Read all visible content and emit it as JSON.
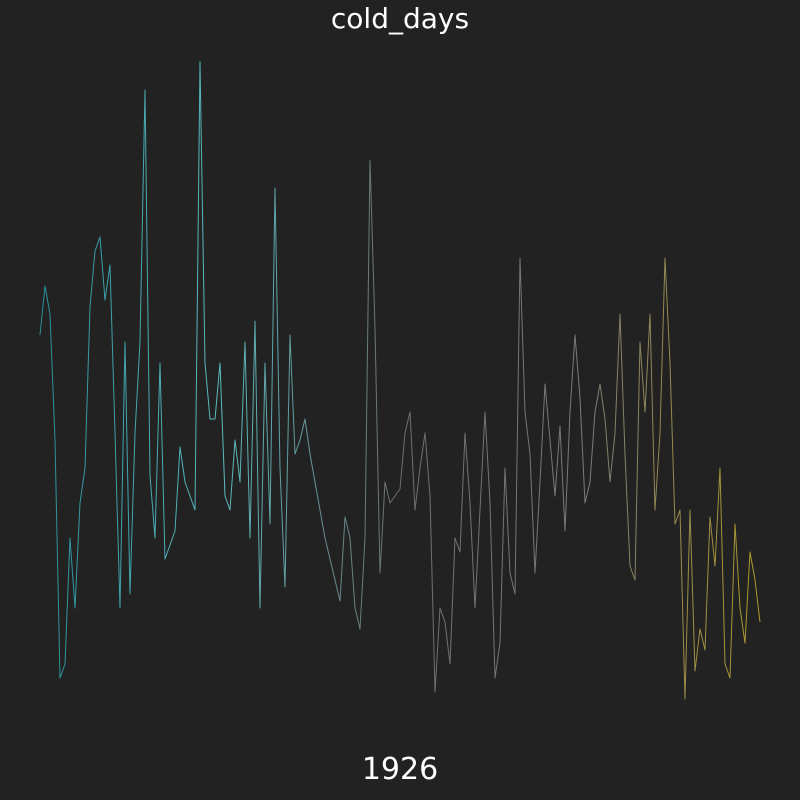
{
  "chart_data": {
    "type": "line",
    "title": "cold_days",
    "year_label": "1926",
    "xlabel": "",
    "ylabel": "",
    "grid": false,
    "axes_visible": false,
    "background": "#222222",
    "gradient_colors": [
      "#2a8f9a",
      "#5bbcc0",
      "#6e6e6e",
      "#7a7a78",
      "#b09a2a"
    ],
    "ylim": [
      0,
      1
    ],
    "series": [
      {
        "values": [
          0.59,
          0.66,
          0.62,
          0.44,
          0.1,
          0.12,
          0.3,
          0.2,
          0.35,
          0.4,
          0.63,
          0.71,
          0.73,
          0.64,
          0.69,
          0.45,
          0.2,
          0.58,
          0.22,
          0.45,
          0.58,
          0.94,
          0.39,
          0.3,
          0.55,
          0.27,
          0.29,
          0.31,
          0.43,
          0.38,
          0.36,
          0.34,
          0.98,
          0.55,
          0.47,
          0.47,
          0.55,
          0.36,
          0.34,
          0.44,
          0.38,
          0.58,
          0.3,
          0.61,
          0.2,
          0.55,
          0.32,
          0.8,
          0.4,
          0.23,
          0.59,
          0.42,
          0.44,
          0.47,
          0.42,
          0.38,
          0.34,
          0.3,
          0.27,
          0.24,
          0.21,
          0.33,
          0.3,
          0.2,
          0.17,
          0.3,
          0.84,
          0.6,
          0.25,
          0.38,
          0.35,
          0.36,
          0.37,
          0.45,
          0.48,
          0.34,
          0.4,
          0.45,
          0.36,
          0.08,
          0.2,
          0.18,
          0.12,
          0.3,
          0.28,
          0.45,
          0.35,
          0.2,
          0.34,
          0.48,
          0.35,
          0.1,
          0.15,
          0.4,
          0.25,
          0.22,
          0.7,
          0.48,
          0.42,
          0.25,
          0.38,
          0.52,
          0.44,
          0.36,
          0.46,
          0.31,
          0.48,
          0.59,
          0.5,
          0.35,
          0.38,
          0.48,
          0.52,
          0.47,
          0.38,
          0.45,
          0.62,
          0.42,
          0.26,
          0.24,
          0.58,
          0.48,
          0.62,
          0.34,
          0.45,
          0.7,
          0.55,
          0.32,
          0.34,
          0.07,
          0.34,
          0.11,
          0.17,
          0.14,
          0.33,
          0.26,
          0.4,
          0.12,
          0.1,
          0.32,
          0.2,
          0.15,
          0.28,
          0.24,
          0.18
        ]
      }
    ]
  }
}
